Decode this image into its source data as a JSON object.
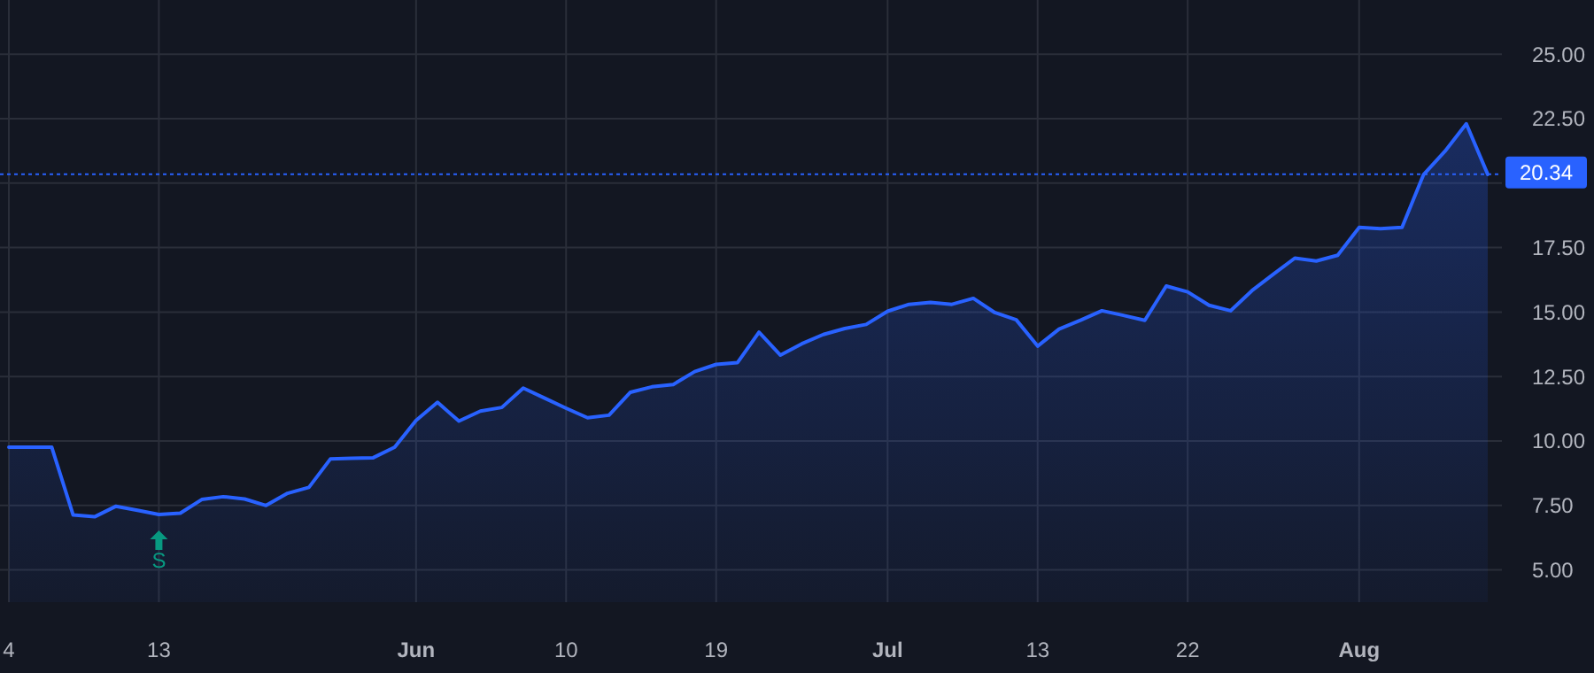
{
  "chart_data": {
    "type": "area",
    "categories": [
      "4",
      null,
      null,
      null,
      null,
      null,
      null,
      "13",
      null,
      null,
      null,
      null,
      null,
      null,
      null,
      null,
      null,
      null,
      null,
      "Jun",
      null,
      null,
      null,
      null,
      null,
      null,
      "10",
      null,
      null,
      null,
      null,
      null,
      null,
      "19",
      null,
      null,
      null,
      null,
      null,
      null,
      null,
      "Jul",
      null,
      null,
      null,
      null,
      null,
      null,
      "13",
      null,
      null,
      null,
      null,
      null,
      null,
      "22",
      null,
      null,
      null,
      null,
      null,
      null,
      null,
      "Aug",
      null,
      null,
      null,
      null,
      null,
      null
    ],
    "series": [
      {
        "color": "#2962ff",
        "values": [
          9.76,
          9.76,
          9.76,
          7.13,
          7.06,
          7.47,
          7.31,
          7.15,
          7.2,
          7.73,
          7.84,
          7.75,
          7.5,
          7.97,
          8.2,
          9.3,
          9.33,
          9.35,
          9.76,
          10.8,
          11.5,
          10.77,
          11.16,
          11.3,
          12.05,
          11.66,
          11.27,
          10.9,
          11.0,
          11.89,
          12.1,
          12.19,
          12.69,
          12.97,
          13.04,
          14.22,
          13.33,
          13.77,
          14.13,
          14.36,
          14.52,
          15.03,
          15.3,
          15.37,
          15.3,
          15.53,
          14.98,
          14.7,
          13.68,
          14.34,
          14.68,
          15.05,
          14.87,
          14.68,
          16.01,
          15.78,
          15.26,
          15.05,
          15.83,
          16.47,
          17.09,
          16.98,
          17.2,
          18.28,
          18.23,
          18.28,
          20.32,
          21.23,
          22.3,
          20.34
        ]
      }
    ],
    "ylim": [
      3.75,
      27.1
    ],
    "yticks": [
      {
        "value": 5,
        "label": "5.00"
      },
      {
        "value": 7.5,
        "label": "7.50"
      },
      {
        "value": 10,
        "label": "10.00"
      },
      {
        "value": 12.5,
        "label": "12.50"
      },
      {
        "value": 15,
        "label": "15.00"
      },
      {
        "value": 17.5,
        "label": "17.50"
      },
      {
        "value": 20,
        "label": null
      },
      {
        "value": 22.5,
        "label": "22.50"
      },
      {
        "value": 25,
        "label": "25.00"
      }
    ],
    "grid": true,
    "ref_lines": [
      {
        "axis": "y",
        "value": 20.34,
        "label": "20.34",
        "color": "#2962ff",
        "line_style": "dotted"
      }
    ],
    "annotations": [
      {
        "text": "S",
        "x": "13",
        "y": 7.15
      }
    ]
  }
}
